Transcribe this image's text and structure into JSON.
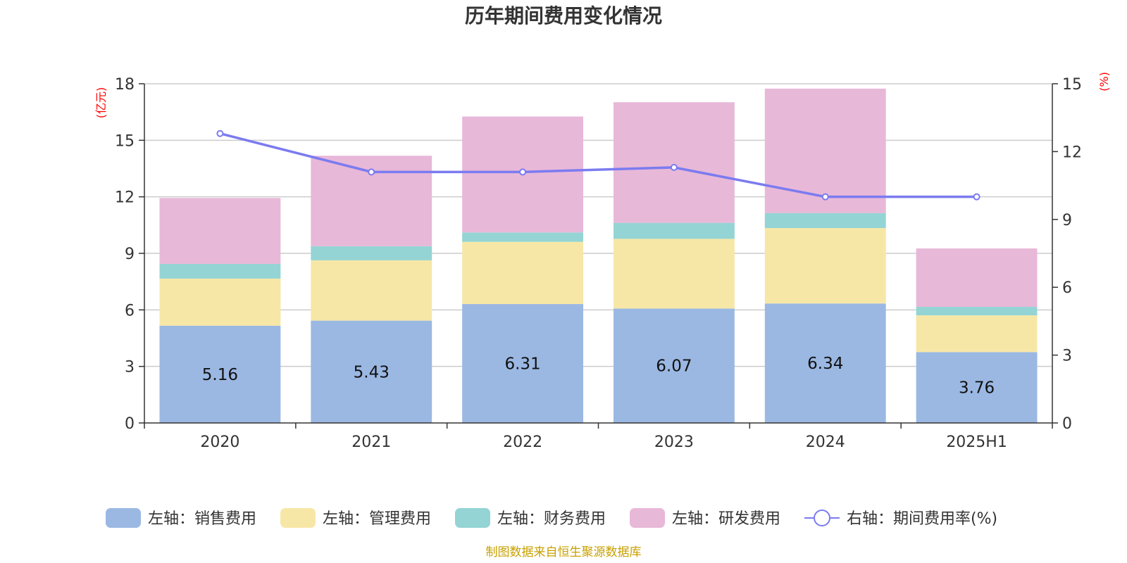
{
  "title": "历年期间费用变化情况",
  "source": "制图数据来自恒生聚源数据库",
  "chart_data": {
    "type": "bar",
    "stacked": true,
    "title": "历年期间费用变化情况",
    "categories": [
      "2020",
      "2021",
      "2022",
      "2023",
      "2024",
      "2025H1"
    ],
    "left_axis": {
      "unit": "(亿元)",
      "ylim": [
        0,
        18
      ],
      "ticks": [
        "0",
        "3",
        "6",
        "9",
        "12",
        "15",
        "18"
      ]
    },
    "right_axis": {
      "unit": "(%)",
      "ylim": [
        0,
        15
      ],
      "ticks": [
        "0",
        "3",
        "6",
        "9",
        "12",
        "15"
      ]
    },
    "grid": true,
    "legend_position": "bottom",
    "series": [
      {
        "name": "左轴：销售费用",
        "axis": "left",
        "type": "bar",
        "color": "#9bb8e3",
        "values": [
          5.16,
          5.43,
          6.31,
          6.07,
          6.34,
          3.76
        ],
        "show_labels": true
      },
      {
        "name": "左轴：管理费用",
        "axis": "left",
        "type": "bar",
        "color": "#f7e7a6",
        "values": [
          2.5,
          3.2,
          3.3,
          3.7,
          4.0,
          1.95
        ]
      },
      {
        "name": "左轴：财务费用",
        "axis": "left",
        "type": "bar",
        "color": "#94d4d4",
        "values": [
          0.78,
          0.75,
          0.5,
          0.85,
          0.8,
          0.45
        ]
      },
      {
        "name": "左轴：研发费用",
        "axis": "left",
        "type": "bar",
        "color": "#e8b8d8",
        "values": [
          3.5,
          4.8,
          6.15,
          6.4,
          6.6,
          3.1
        ]
      },
      {
        "name": "右轴：期间费用率(%)",
        "axis": "right",
        "type": "line",
        "color": "#7b7bf0",
        "values": [
          12.8,
          11.1,
          11.1,
          11.3,
          10.0,
          10.0
        ]
      }
    ]
  }
}
